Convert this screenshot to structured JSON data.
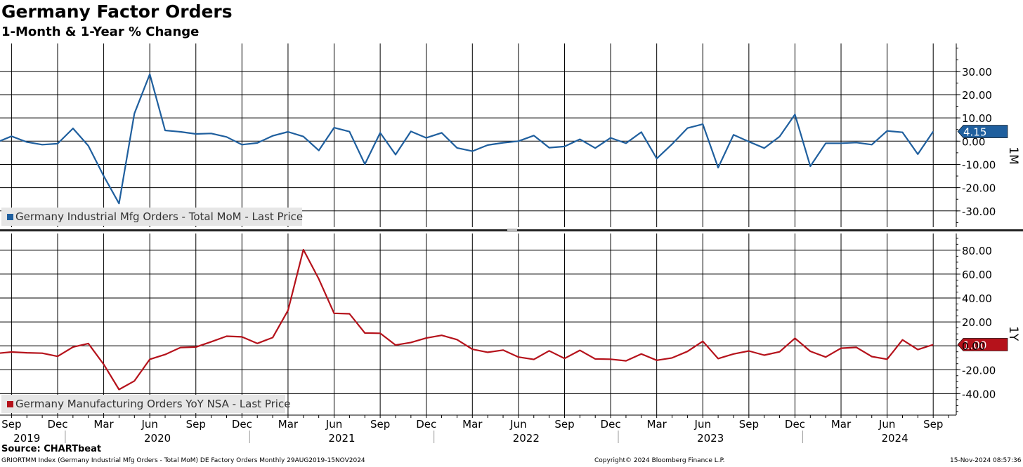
{
  "header": {
    "title": "Germany Factor Orders",
    "subtitle": "1-Month & 1-Year % Change"
  },
  "colors": {
    "mom": "#1f5f9e",
    "yoy": "#b5121b",
    "grid": "#000000"
  },
  "chart_data": [
    {
      "type": "line",
      "panel_label": "1M",
      "legend": "Germany Industrial Mfg Orders - Total MoM - Last Price",
      "last_value_label": "4.15",
      "yticks": [
        30,
        20,
        10,
        0,
        -10,
        -20,
        -30
      ],
      "ytick_labels": [
        "30.00",
        "20.00",
        "10.00",
        "0.00",
        "-10.00",
        "-20.00",
        "-30.00"
      ],
      "ylim": [
        -37,
        42
      ],
      "x_months": [
        "2019-08",
        "2019-09",
        "2019-10",
        "2019-11",
        "2019-12",
        "2020-01",
        "2020-02",
        "2020-03",
        "2020-04",
        "2020-05",
        "2020-06",
        "2020-07",
        "2020-08",
        "2020-09",
        "2020-10",
        "2020-11",
        "2020-12",
        "2021-01",
        "2021-02",
        "2021-03",
        "2021-04",
        "2021-05",
        "2021-06",
        "2021-07",
        "2021-08",
        "2021-09",
        "2021-10",
        "2021-11",
        "2021-12",
        "2022-01",
        "2022-02",
        "2022-03",
        "2022-04",
        "2022-05",
        "2022-06",
        "2022-07",
        "2022-08",
        "2022-09",
        "2022-10",
        "2022-11",
        "2022-12",
        "2023-01",
        "2023-02",
        "2023-03",
        "2023-04",
        "2023-05",
        "2023-06",
        "2023-07",
        "2023-08",
        "2023-09",
        "2023-10",
        "2023-11",
        "2023-12",
        "2024-01",
        "2024-02",
        "2024-03",
        "2024-04",
        "2024-05",
        "2024-06",
        "2024-07",
        "2024-08",
        "2024-09"
      ],
      "values": [
        -0.6,
        2.1,
        -0.4,
        -1.5,
        -1.1,
        5.5,
        -2.0,
        -15.0,
        -26.8,
        11.9,
        28.8,
        4.6,
        4.0,
        3.1,
        3.3,
        1.8,
        -1.5,
        -0.8,
        2.3,
        4.0,
        2.0,
        -4.0,
        5.8,
        4.1,
        -9.9,
        3.6,
        -5.8,
        4.2,
        1.4,
        3.6,
        -2.9,
        -4.3,
        -1.7,
        -0.7,
        0.0,
        2.4,
        -2.8,
        -2.3,
        0.8,
        -3.0,
        1.4,
        -0.9,
        3.9,
        -7.5,
        -1.3,
        5.6,
        7.3,
        -11.4,
        2.7,
        -0.2,
        -3.0,
        2.0,
        11.5,
        -10.8,
        -0.9,
        -0.9,
        -0.6,
        -1.5,
        4.4,
        3.8,
        -5.6,
        4.15
      ]
    },
    {
      "type": "line",
      "panel_label": "1Y",
      "legend": "Germany Manufacturing Orders YoY NSA - Last Price",
      "last_value_label": "1.00",
      "yticks": [
        80,
        60,
        40,
        20,
        0,
        -20,
        -40
      ],
      "ytick_labels": [
        "80.00",
        "60.00",
        "40.00",
        "20.00",
        "0.00",
        "-20.00",
        "-40.00"
      ],
      "ylim": [
        -58,
        94
      ],
      "x_months": [
        "2019-08",
        "2019-09",
        "2019-10",
        "2019-11",
        "2019-12",
        "2020-01",
        "2020-02",
        "2020-03",
        "2020-04",
        "2020-05",
        "2020-06",
        "2020-07",
        "2020-08",
        "2020-09",
        "2020-10",
        "2020-11",
        "2020-12",
        "2021-01",
        "2021-02",
        "2021-03",
        "2021-04",
        "2021-05",
        "2021-06",
        "2021-07",
        "2021-08",
        "2021-09",
        "2021-10",
        "2021-11",
        "2021-12",
        "2022-01",
        "2022-02",
        "2022-03",
        "2022-04",
        "2022-05",
        "2022-06",
        "2022-07",
        "2022-08",
        "2022-09",
        "2022-10",
        "2022-11",
        "2022-12",
        "2023-01",
        "2023-02",
        "2023-03",
        "2023-04",
        "2023-05",
        "2023-06",
        "2023-07",
        "2023-08",
        "2023-09",
        "2023-10",
        "2023-11",
        "2023-12",
        "2024-01",
        "2024-02",
        "2024-03",
        "2024-04",
        "2024-05",
        "2024-06",
        "2024-07",
        "2024-08",
        "2024-09"
      ],
      "values": [
        -6.4,
        -5.2,
        -5.8,
        -6.2,
        -8.8,
        -1.0,
        1.9,
        -15.5,
        -36.6,
        -29.4,
        -11.3,
        -7.3,
        -1.4,
        -1.0,
        3.4,
        8.0,
        7.5,
        2.0,
        6.9,
        29.6,
        80.5,
        56.0,
        27.2,
        26.8,
        10.7,
        10.5,
        0.6,
        2.8,
        6.5,
        8.8,
        5.2,
        -2.9,
        -5.4,
        -3.6,
        -9.4,
        -11.4,
        -4.2,
        -10.6,
        -3.8,
        -11.0,
        -11.2,
        -12.6,
        -6.8,
        -12.1,
        -10.1,
        -4.7,
        3.8,
        -10.7,
        -6.8,
        -4.3,
        -7.8,
        -5.0,
        6.3,
        -4.6,
        -9.4,
        -2.0,
        -1.3,
        -9.0,
        -11.2,
        5.0,
        -3.2,
        1.0
      ]
    }
  ],
  "x_axis": {
    "month_ticks": [
      "Sep",
      "Dec",
      "Mar",
      "Jun",
      "Sep",
      "Dec",
      "Mar",
      "Jun",
      "Sep",
      "Dec",
      "Mar",
      "Jun",
      "Sep",
      "Dec",
      "Mar",
      "Jun",
      "Sep",
      "Dec",
      "Mar",
      "Jun",
      "Sep"
    ],
    "years": [
      "2019",
      "2020",
      "2021",
      "2022",
      "2023",
      "2024"
    ]
  },
  "footer": {
    "source": "Source: CHARTbeat",
    "left": "GRIORTMM Index (Germany Industrial Mfg Orders - Total MoM) DE Factory Orders  Monthly 29AUG2019-15NOV2024",
    "middle": "Copyright© 2024 Bloomberg Finance L.P.",
    "right": "15-Nov-2024 08:57:36"
  }
}
